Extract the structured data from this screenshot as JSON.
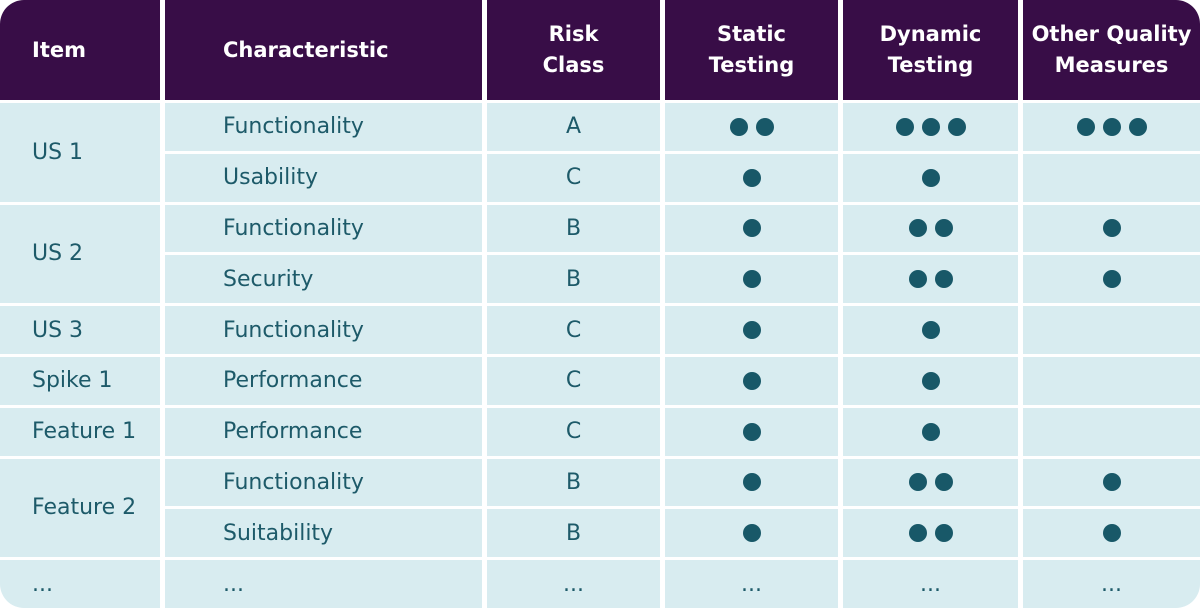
{
  "header": {
    "columns": [
      "Item",
      "Characteristic",
      "Risk Class",
      "Static Testing",
      "Dynamic Testing",
      "Other Quality Measures"
    ]
  },
  "table": {
    "groups": [
      {
        "item": "US 1",
        "rows": [
          [
            "Functionality",
            "A",
            2,
            3,
            3
          ],
          [
            "Usability",
            "C",
            1,
            1,
            0
          ]
        ]
      },
      {
        "item": "US 2",
        "rows": [
          [
            "Functionality",
            "B",
            1,
            2,
            1
          ],
          [
            "Security",
            "B",
            1,
            2,
            1
          ]
        ]
      },
      {
        "item": "US 3",
        "rows": [
          [
            "Functionality",
            "C",
            1,
            1,
            0
          ]
        ]
      },
      {
        "item": "Spike 1",
        "rows": [
          [
            "Performance",
            "C",
            1,
            1,
            0
          ]
        ]
      },
      {
        "item": "Feature 1",
        "rows": [
          [
            "Performance",
            "C",
            1,
            1,
            0
          ]
        ]
      },
      {
        "item": "Feature 2",
        "rows": [
          [
            "Functionality",
            "B",
            1,
            2,
            1
          ],
          [
            "Suitability",
            "B",
            1,
            2,
            1
          ]
        ]
      },
      {
        "item": "...",
        "rows": [
          [
            "...",
            "...",
            "...",
            "...",
            "..."
          ]
        ]
      }
    ]
  }
}
